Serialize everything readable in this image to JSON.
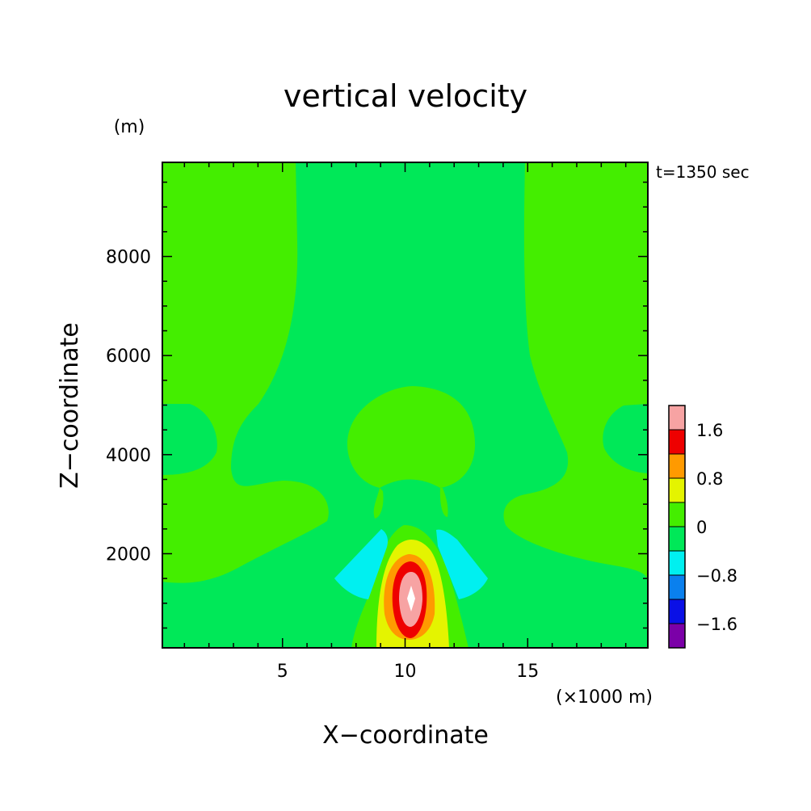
{
  "chart_data": {
    "type": "heatmap",
    "title": "vertical velocity",
    "xlabel": "X−coordinate",
    "ylabel": "Z−coordinate",
    "x_unit": "(×1000 m)",
    "y_unit": "(m)",
    "time_label": "t=1350 sec",
    "xlim": [
      0.1,
      19.9
    ],
    "ylim": [
      100,
      9900
    ],
    "x_ticks": [
      5,
      10,
      15
    ],
    "y_ticks": [
      2000,
      4000,
      6000,
      8000
    ],
    "x_tick_labels": [
      "5",
      "10",
      "15"
    ],
    "y_tick_labels": [
      "2000",
      "4000",
      "6000",
      "8000"
    ],
    "colorbar": {
      "levels": [
        {
          "range": "< -1.6",
          "color": "#7b00a8"
        },
        {
          "range": "-1.6 to -1.2",
          "color": "#0a10e6"
        },
        {
          "range": "-1.2 to -0.8",
          "color": "#0a80ee"
        },
        {
          "range": "-0.8 to -0.4",
          "color": "#00f0f0"
        },
        {
          "range": "-0.4 to 0",
          "color": "#00e858"
        },
        {
          "range": "0 to 0.4",
          "color": "#44ee00"
        },
        {
          "range": "0.4 to 0.8",
          "color": "#e4f400"
        },
        {
          "range": "0.8 to 1.2",
          "color": "#ff9a00"
        },
        {
          "range": "1.2 to 1.6",
          "color": "#ee0000"
        },
        {
          "range": "> 1.6",
          "color": "#f7a3a3"
        }
      ],
      "tick_labels": [
        "1.6",
        "0.8",
        "0",
        "−0.8",
        "−1.6"
      ]
    },
    "features": [
      {
        "description": "updraft core",
        "x": 10.1,
        "z": 1100,
        "max_value": "> 1.6"
      },
      {
        "description": "downdraft lobe left",
        "x": 8.3,
        "z": 1500,
        "range": "-0.8 to -0.4"
      },
      {
        "description": "downdraft lobe right",
        "x": 11.8,
        "z": 1600,
        "range": "-0.8 to -0.4"
      }
    ]
  }
}
